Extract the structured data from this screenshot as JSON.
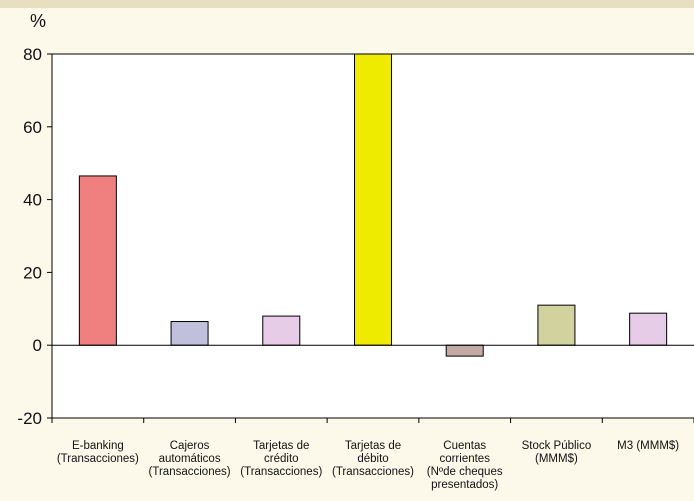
{
  "chart_data": {
    "type": "bar",
    "unit": "%",
    "categories": [
      [
        "E-banking",
        "(Transacciones)"
      ],
      [
        "Cajeros",
        "automáticos",
        "(Transacciones)"
      ],
      [
        "Tarjetas de",
        "crédito",
        "(Transacciones)"
      ],
      [
        "Tarjetas de",
        "débito",
        "(Transacciones)"
      ],
      [
        "Cuentas",
        "corrientes",
        "(Nºde cheques",
        "presentados)"
      ],
      [
        "Stock Público",
        "(MMM$)"
      ],
      [
        "M3  (MMM$)"
      ]
    ],
    "values": [
      46.5,
      6.5,
      8,
      80,
      -3,
      11,
      8.8
    ],
    "colors": [
      "#f08080",
      "#c0c0dc",
      "#e6cce6",
      "#eeea00",
      "#c4aaa6",
      "#d2d29e",
      "#e6cce6"
    ],
    "ylim": [
      -20,
      80
    ],
    "yticks": [
      -20,
      0,
      20,
      40,
      60,
      80
    ],
    "grid": false,
    "legend": "none"
  }
}
